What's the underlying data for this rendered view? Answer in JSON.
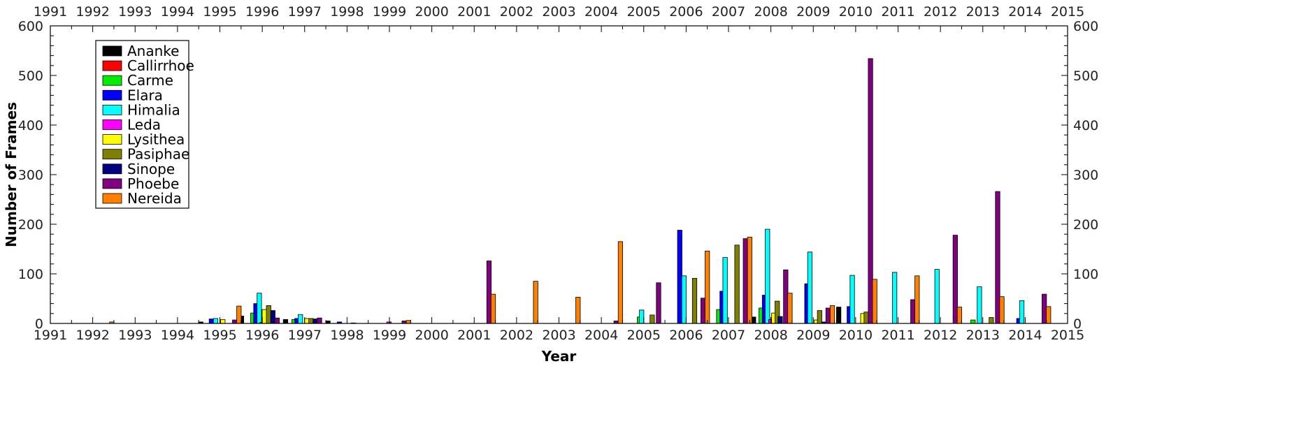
{
  "chart_data": {
    "type": "bar",
    "title": "",
    "xlabel": "Year",
    "ylabel": "Number of Frames",
    "xlim": [
      1991,
      2015
    ],
    "ylim": [
      0,
      600
    ],
    "x_ticks": [
      1991,
      1992,
      1993,
      1994,
      1995,
      1996,
      1997,
      1998,
      1999,
      2000,
      2001,
      2002,
      2003,
      2004,
      2005,
      2006,
      2007,
      2008,
      2009,
      2010,
      2011,
      2012,
      2013,
      2014,
      2015
    ],
    "y_ticks": [
      0,
      100,
      200,
      300,
      400,
      500,
      600
    ],
    "grid": false,
    "legend_position": "top-left",
    "series": [
      {
        "name": "Ananke",
        "color": "#000000",
        "points": [
          {
            "x": 1994.55,
            "y": 3
          },
          {
            "x": 1995.51,
            "y": 15
          },
          {
            "x": 1996.55,
            "y": 8
          },
          {
            "x": 1997.55,
            "y": 5
          },
          {
            "x": 2007.59,
            "y": 13
          },
          {
            "x": 2009.6,
            "y": 33
          }
        ]
      },
      {
        "name": "Callirrhoe",
        "color": "#ff0000",
        "points": []
      },
      {
        "name": "Carme",
        "color": "#00ee00",
        "points": [
          {
            "x": 1995.78,
            "y": 21
          },
          {
            "x": 1996.75,
            "y": 8
          },
          {
            "x": 2004.9,
            "y": 13
          },
          {
            "x": 2006.77,
            "y": 28
          },
          {
            "x": 2007.77,
            "y": 31
          },
          {
            "x": 2008.85,
            "y": 4
          },
          {
            "x": 2012.77,
            "y": 7
          }
        ]
      },
      {
        "name": "Elara",
        "color": "#0000ff",
        "points": [
          {
            "x": 1994.8,
            "y": 9
          },
          {
            "x": 1995.85,
            "y": 40
          },
          {
            "x": 1996.82,
            "y": 10
          },
          {
            "x": 1997.82,
            "y": 3
          },
          {
            "x": 2005.85,
            "y": 188
          },
          {
            "x": 2006.85,
            "y": 65
          },
          {
            "x": 2007.85,
            "y": 57
          },
          {
            "x": 2008.85,
            "y": 80
          },
          {
            "x": 2009.85,
            "y": 34
          },
          {
            "x": 2013.85,
            "y": 10
          }
        ]
      },
      {
        "name": "Himalia",
        "color": "#00ffff",
        "points": [
          {
            "x": 1994.9,
            "y": 10
          },
          {
            "x": 1995.93,
            "y": 61
          },
          {
            "x": 1996.9,
            "y": 18
          },
          {
            "x": 2004.95,
            "y": 27
          },
          {
            "x": 2005.95,
            "y": 96
          },
          {
            "x": 2006.92,
            "y": 133
          },
          {
            "x": 2007.92,
            "y": 190
          },
          {
            "x": 2008.92,
            "y": 144
          },
          {
            "x": 2009.92,
            "y": 97
          },
          {
            "x": 2010.92,
            "y": 103
          },
          {
            "x": 2011.92,
            "y": 109
          },
          {
            "x": 2012.92,
            "y": 74
          },
          {
            "x": 2013.92,
            "y": 46
          }
        ]
      },
      {
        "name": "Leda",
        "color": "#ff00ff",
        "points": [
          {
            "x": 1996.0,
            "y": 2
          },
          {
            "x": 1998.99,
            "y": 3
          },
          {
            "x": 2008.0,
            "y": 8
          }
        ]
      },
      {
        "name": "Lysithea",
        "color": "#ffff00",
        "points": [
          {
            "x": 1995.07,
            "y": 8
          },
          {
            "x": 1996.05,
            "y": 28
          },
          {
            "x": 1997.05,
            "y": 10
          },
          {
            "x": 2008.07,
            "y": 21
          },
          {
            "x": 2009.07,
            "y": 7
          },
          {
            "x": 2010.17,
            "y": 20
          }
        ]
      },
      {
        "name": "Pasiphae",
        "color": "#808000",
        "points": [
          {
            "x": 1996.15,
            "y": 36
          },
          {
            "x": 1997.15,
            "y": 10
          },
          {
            "x": 1998.15,
            "y": 1
          },
          {
            "x": 2005.2,
            "y": 17
          },
          {
            "x": 2006.2,
            "y": 91
          },
          {
            "x": 2007.2,
            "y": 158
          },
          {
            "x": 2008.15,
            "y": 45
          },
          {
            "x": 2009.15,
            "y": 26
          },
          {
            "x": 2010.25,
            "y": 23
          },
          {
            "x": 2013.2,
            "y": 12
          }
        ]
      },
      {
        "name": "Sinope",
        "color": "#000080",
        "points": [
          {
            "x": 1996.25,
            "y": 26
          },
          {
            "x": 1997.25,
            "y": 9
          },
          {
            "x": 2008.22,
            "y": 14
          },
          {
            "x": 2009.25,
            "y": 3
          }
        ]
      },
      {
        "name": "Phoebe",
        "color": "#800080",
        "points": [
          {
            "x": 1995.35,
            "y": 7
          },
          {
            "x": 1996.35,
            "y": 11
          },
          {
            "x": 1997.35,
            "y": 11
          },
          {
            "x": 1999.35,
            "y": 5
          },
          {
            "x": 2001.35,
            "y": 126
          },
          {
            "x": 2004.35,
            "y": 5
          },
          {
            "x": 2005.35,
            "y": 82
          },
          {
            "x": 2006.4,
            "y": 51
          },
          {
            "x": 2007.4,
            "y": 171
          },
          {
            "x": 2008.35,
            "y": 108
          },
          {
            "x": 2009.35,
            "y": 31
          },
          {
            "x": 2010.35,
            "y": 534
          },
          {
            "x": 2011.35,
            "y": 48
          },
          {
            "x": 2012.35,
            "y": 178
          },
          {
            "x": 2013.35,
            "y": 266
          },
          {
            "x": 2014.45,
            "y": 59
          }
        ]
      },
      {
        "name": "Nereida",
        "color": "#ff8000",
        "points": [
          {
            "x": 1992.45,
            "y": 3
          },
          {
            "x": 1995.45,
            "y": 35
          },
          {
            "x": 1999.45,
            "y": 6
          },
          {
            "x": 2001.45,
            "y": 59
          },
          {
            "x": 2002.45,
            "y": 85
          },
          {
            "x": 2003.45,
            "y": 53
          },
          {
            "x": 2004.45,
            "y": 165
          },
          {
            "x": 2006.5,
            "y": 146
          },
          {
            "x": 2007.5,
            "y": 174
          },
          {
            "x": 2008.45,
            "y": 61
          },
          {
            "x": 2009.45,
            "y": 36
          },
          {
            "x": 2010.45,
            "y": 89
          },
          {
            "x": 2011.45,
            "y": 96
          },
          {
            "x": 2012.45,
            "y": 33
          },
          {
            "x": 2013.45,
            "y": 54
          },
          {
            "x": 2014.55,
            "y": 34
          }
        ]
      }
    ]
  }
}
